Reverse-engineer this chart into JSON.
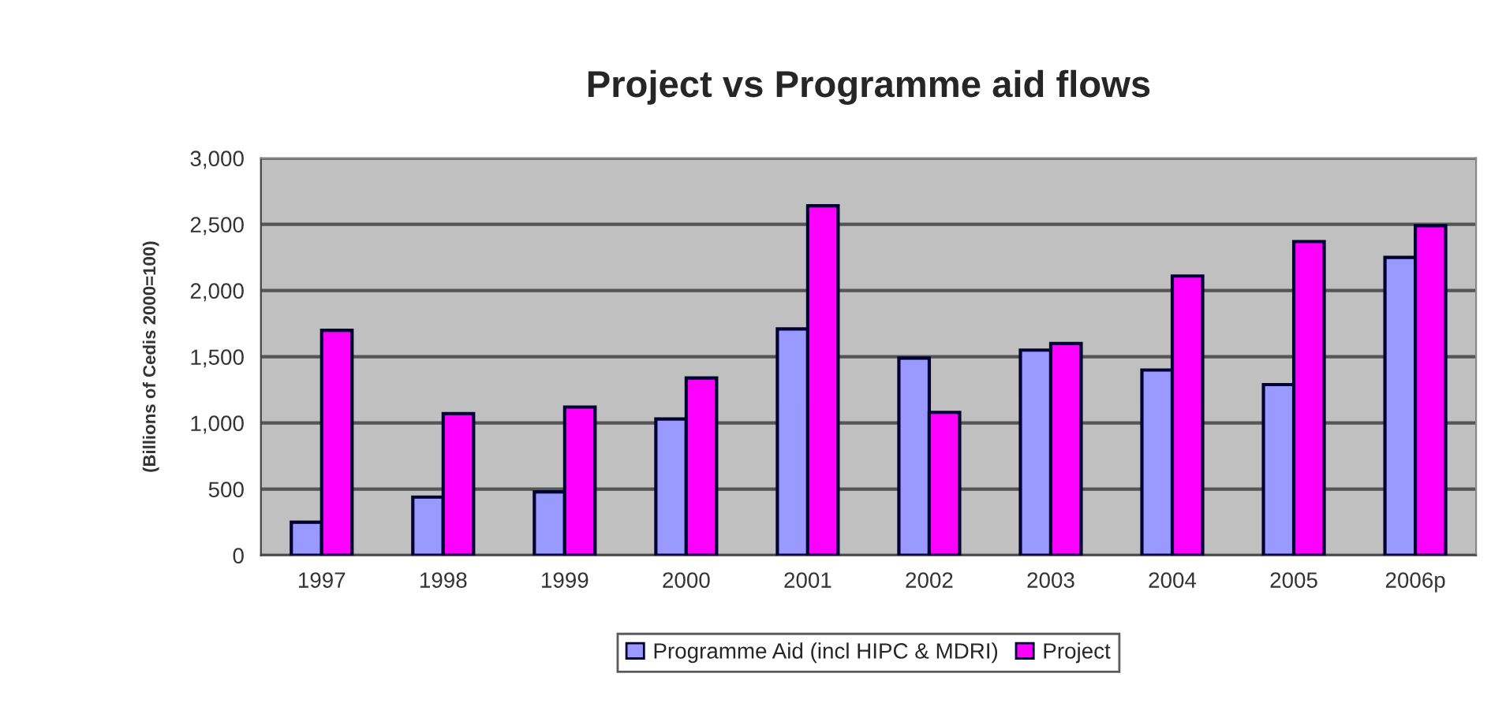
{
  "chart_data": {
    "type": "bar",
    "title": "Project vs Programme aid flows",
    "ylabel": "(Billions of Cedis 2000=100)",
    "categories": [
      "1997",
      "1998",
      "1999",
      "2000",
      "2001",
      "2002",
      "2003",
      "2004",
      "2005",
      "2006p"
    ],
    "series": [
      {
        "name": "Programme Aid (incl HIPC & MDRI)",
        "color": "#9999ff",
        "values": [
          250,
          440,
          480,
          1030,
          1710,
          1490,
          1550,
          1400,
          1290,
          2250
        ]
      },
      {
        "name": "Project",
        "color": "#ff00ff",
        "values": [
          1700,
          1070,
          1120,
          1340,
          2640,
          1080,
          1600,
          2110,
          2370,
          2490
        ]
      }
    ],
    "ylim": [
      0,
      3000
    ],
    "yticks": [
      {
        "value": 0,
        "label": "0"
      },
      {
        "value": 500,
        "label": "500"
      },
      {
        "value": 1000,
        "label": "1,000"
      },
      {
        "value": 1500,
        "label": "1,500"
      },
      {
        "value": 2000,
        "label": "2,000"
      },
      {
        "value": 2500,
        "label": "2,500"
      },
      {
        "value": 3000,
        "label": "3,000"
      }
    ],
    "grid": "y",
    "legend": "bottom"
  }
}
